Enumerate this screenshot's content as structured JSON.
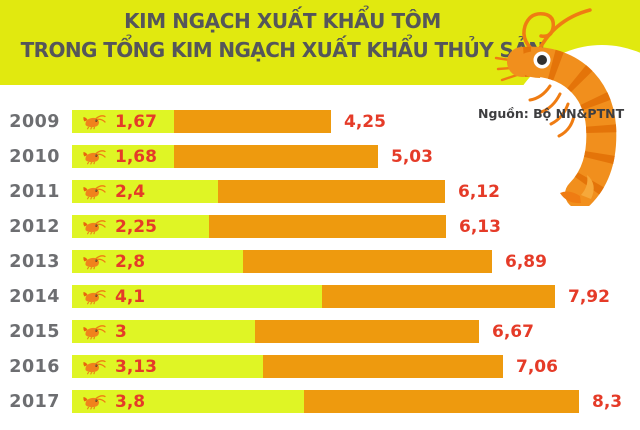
{
  "header": {
    "title_line1": "KIM NGẠCH XUẤT KHẨU TÔM",
    "title_line2": "TRONG TỔNG KIM NGẠCH XUẤT KHẨU THỦY SẢN"
  },
  "source": {
    "text": "Nguồn: Bộ NN&PTNT"
  },
  "colors": {
    "banner": "#e1e90f",
    "shrimp_bar": "#dff525",
    "total_bar": "#ee9a0e",
    "value_text": "#e53b28",
    "year_text": "#6d6e71",
    "title_text": "#55565a",
    "shrimp_orange": "#f0821c"
  },
  "chart_data": {
    "type": "bar",
    "orientation": "horizontal",
    "title": "KIM NGẠCH XUẤT KHẨU TÔM TRONG TỔNG KIM NGẠCH XUẤT KHẨU THỦY SẢN",
    "source": "Nguồn: Bộ NN&PTNT",
    "categories": [
      "2009",
      "2010",
      "2011",
      "2012",
      "2013",
      "2014",
      "2015",
      "2016",
      "2017"
    ],
    "series": [
      {
        "name": "Kim ngạch xuất khẩu tôm",
        "color": "#dff525",
        "values": [
          1.67,
          1.68,
          2.4,
          2.25,
          2.8,
          4.1,
          3,
          3.13,
          3.8
        ],
        "labels": [
          "1,67",
          "1,68",
          "2,4",
          "2,25",
          "2,8",
          "4,1",
          "3",
          "3,13",
          "3,8"
        ]
      },
      {
        "name": "Tổng kim ngạch xuất khẩu thủy sản",
        "color": "#ee9a0e",
        "values": [
          4.25,
          5.03,
          6.12,
          6.13,
          6.89,
          7.92,
          6.67,
          7.06,
          8.3
        ],
        "labels": [
          "4,25",
          "5,03",
          "6,12",
          "6,13",
          "6,89",
          "7,92",
          "6,67",
          "7,06",
          "8,3"
        ]
      }
    ],
    "xlim": [
      0,
      8.5
    ],
    "grid": false,
    "legend": "none"
  }
}
